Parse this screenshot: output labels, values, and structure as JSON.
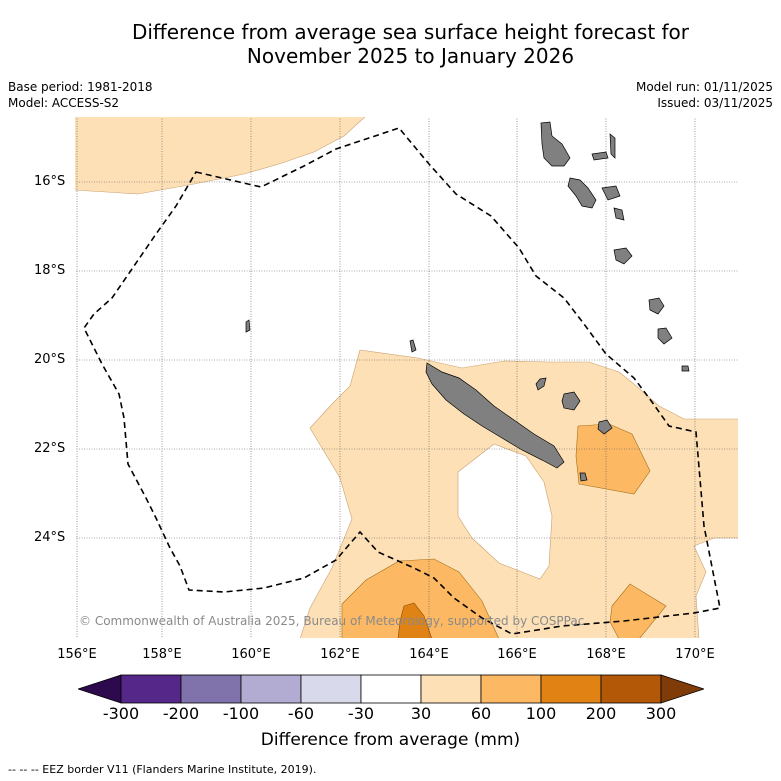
{
  "title_line1": "Difference from average sea surface height forecast for",
  "title_line2": "November 2025 to January 2026",
  "meta": {
    "base_period": "Base period: 1981-2018",
    "model": "Model: ACCESS-S2",
    "model_run": "Model run: 01/11/2025",
    "issued": "Issued: 03/11/2025"
  },
  "lat_ticks": [
    "16°S",
    "18°S",
    "20°S",
    "22°S",
    "24°S"
  ],
  "lon_ticks": [
    "156°E",
    "158°E",
    "160°E",
    "162°E",
    "164°E",
    "166°E",
    "168°E",
    "170°E"
  ],
  "credit": "© Commonwealth of Australia 2025, Bureau of Meteorology, supported by COSPPac",
  "colorbar": {
    "ticks": [
      "-300",
      "-200",
      "-100",
      "-60",
      "-30",
      "30",
      "60",
      "100",
      "200",
      "300"
    ],
    "colors": [
      "#2d0a4e",
      "#542788",
      "#8073ac",
      "#b2abd2",
      "#d8daeb",
      "#ffffff",
      "#fee0b6",
      "#fdb863",
      "#e08214",
      "#b35806",
      "#7f3b08"
    ],
    "label": "Difference from average (mm)"
  },
  "legend_note": "--  --  -- EEZ border V11 (Flanders Marine Institute, 2019).",
  "colors": {
    "land": "#808080",
    "level_30_60": "#fee0b6",
    "level_60_100": "#fdb863",
    "level_100_200": "#e08214",
    "eez": "#000000"
  }
}
